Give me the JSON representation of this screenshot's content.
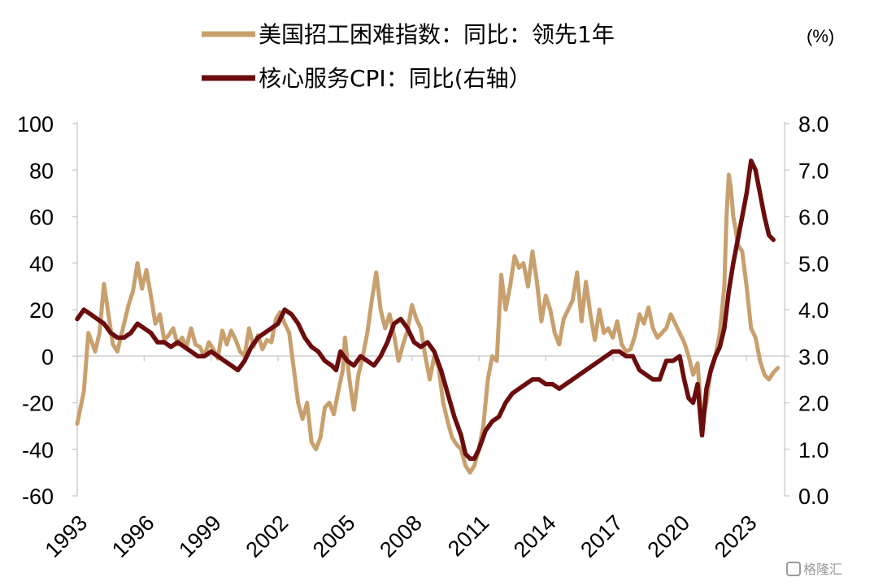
{
  "chart_data": {
    "type": "line",
    "unit_label": "(%)",
    "legend_placement": "top-center",
    "grid": false,
    "x_ticks": [
      "1993",
      "1996",
      "1999",
      "2002",
      "2005",
      "2008",
      "2011",
      "2014",
      "2017",
      "2020",
      "2023"
    ],
    "xlim": [
      1993,
      2024.7
    ],
    "y_left": {
      "lim": [
        -60,
        100
      ],
      "ticks": [
        "100",
        "80",
        "60",
        "40",
        "20",
        "0",
        "-20",
        "-40",
        "-60"
      ]
    },
    "y_right": {
      "lim": [
        0,
        8
      ],
      "ticks": [
        "8.0",
        "7.0",
        "6.0",
        "5.0",
        "4.0",
        "3.0",
        "2.0",
        "1.0",
        "0.0"
      ]
    },
    "series": [
      {
        "name": "美国招工困难指数：同比：领先1年",
        "axis": "left",
        "color": "#c8a06e",
        "points": [
          [
            1993.0,
            -29
          ],
          [
            1993.3,
            -15
          ],
          [
            1993.5,
            10
          ],
          [
            1993.8,
            2
          ],
          [
            1994.0,
            10
          ],
          [
            1994.2,
            31
          ],
          [
            1994.4,
            18
          ],
          [
            1994.6,
            5
          ],
          [
            1994.8,
            2
          ],
          [
            1995.0,
            10
          ],
          [
            1995.3,
            22
          ],
          [
            1995.5,
            28
          ],
          [
            1995.7,
            40
          ],
          [
            1995.9,
            29
          ],
          [
            1996.1,
            37
          ],
          [
            1996.3,
            26
          ],
          [
            1996.5,
            14
          ],
          [
            1996.7,
            18
          ],
          [
            1996.9,
            7
          ],
          [
            1997.1,
            9
          ],
          [
            1997.3,
            12
          ],
          [
            1997.5,
            5
          ],
          [
            1997.7,
            8
          ],
          [
            1997.9,
            4
          ],
          [
            1998.1,
            12
          ],
          [
            1998.3,
            5
          ],
          [
            1998.5,
            4
          ],
          [
            1998.7,
            0
          ],
          [
            1998.9,
            6
          ],
          [
            1999.1,
            3
          ],
          [
            1999.3,
            -1
          ],
          [
            1999.5,
            11
          ],
          [
            1999.7,
            5
          ],
          [
            1999.9,
            11
          ],
          [
            2000.1,
            7
          ],
          [
            2000.3,
            2
          ],
          [
            2000.5,
            0
          ],
          [
            2000.7,
            12
          ],
          [
            2000.9,
            4
          ],
          [
            2001.1,
            9
          ],
          [
            2001.3,
            3
          ],
          [
            2001.5,
            7
          ],
          [
            2001.7,
            6
          ],
          [
            2001.9,
            16
          ],
          [
            2002.1,
            19
          ],
          [
            2002.3,
            14
          ],
          [
            2002.5,
            10
          ],
          [
            2002.7,
            -5
          ],
          [
            2002.9,
            -20
          ],
          [
            2003.1,
            -27
          ],
          [
            2003.3,
            -20
          ],
          [
            2003.5,
            -37
          ],
          [
            2003.7,
            -40
          ],
          [
            2003.9,
            -35
          ],
          [
            2004.1,
            -22
          ],
          [
            2004.3,
            -20
          ],
          [
            2004.5,
            -25
          ],
          [
            2004.7,
            -15
          ],
          [
            2004.9,
            -6
          ],
          [
            2005.0,
            8
          ],
          [
            2005.2,
            -10
          ],
          [
            2005.4,
            -23
          ],
          [
            2005.6,
            -8
          ],
          [
            2005.8,
            0
          ],
          [
            2006.0,
            10
          ],
          [
            2006.2,
            24
          ],
          [
            2006.4,
            36
          ],
          [
            2006.6,
            20
          ],
          [
            2006.8,
            12
          ],
          [
            2007.0,
            18
          ],
          [
            2007.2,
            9
          ],
          [
            2007.4,
            -2
          ],
          [
            2007.6,
            5
          ],
          [
            2007.8,
            11
          ],
          [
            2008.0,
            22
          ],
          [
            2008.2,
            16
          ],
          [
            2008.4,
            12
          ],
          [
            2008.6,
            0
          ],
          [
            2008.8,
            -10
          ],
          [
            2009.0,
            0
          ],
          [
            2009.2,
            -5
          ],
          [
            2009.4,
            -20
          ],
          [
            2009.6,
            -28
          ],
          [
            2009.8,
            -35
          ],
          [
            2010.0,
            -38
          ],
          [
            2010.2,
            -40
          ],
          [
            2010.4,
            -47
          ],
          [
            2010.6,
            -50
          ],
          [
            2010.8,
            -47
          ],
          [
            2011.0,
            -40
          ],
          [
            2011.2,
            -30
          ],
          [
            2011.4,
            -10
          ],
          [
            2011.6,
            0
          ],
          [
            2011.8,
            -2
          ],
          [
            2012.0,
            35
          ],
          [
            2012.2,
            20
          ],
          [
            2012.4,
            30
          ],
          [
            2012.6,
            43
          ],
          [
            2012.8,
            38
          ],
          [
            2013.0,
            40
          ],
          [
            2013.2,
            30
          ],
          [
            2013.4,
            45
          ],
          [
            2013.6,
            32
          ],
          [
            2013.8,
            15
          ],
          [
            2014.0,
            26
          ],
          [
            2014.2,
            20
          ],
          [
            2014.4,
            10
          ],
          [
            2014.6,
            5
          ],
          [
            2014.8,
            16
          ],
          [
            2015.0,
            20
          ],
          [
            2015.2,
            24
          ],
          [
            2015.4,
            36
          ],
          [
            2015.6,
            15
          ],
          [
            2015.8,
            32
          ],
          [
            2016.0,
            18
          ],
          [
            2016.2,
            7
          ],
          [
            2016.4,
            20
          ],
          [
            2016.6,
            10
          ],
          [
            2016.8,
            12
          ],
          [
            2017.0,
            8
          ],
          [
            2017.2,
            15
          ],
          [
            2017.4,
            5
          ],
          [
            2017.6,
            2
          ],
          [
            2017.8,
            3
          ],
          [
            2018.0,
            9
          ],
          [
            2018.2,
            18
          ],
          [
            2018.4,
            14
          ],
          [
            2018.6,
            21
          ],
          [
            2018.8,
            12
          ],
          [
            2019.0,
            8
          ],
          [
            2019.2,
            10
          ],
          [
            2019.4,
            12
          ],
          [
            2019.6,
            18
          ],
          [
            2019.8,
            14
          ],
          [
            2020.0,
            10
          ],
          [
            2020.2,
            6
          ],
          [
            2020.4,
            0
          ],
          [
            2020.6,
            -8
          ],
          [
            2020.8,
            -3
          ],
          [
            2021.0,
            -28
          ],
          [
            2021.2,
            -20
          ],
          [
            2021.4,
            -5
          ],
          [
            2021.6,
            0
          ],
          [
            2021.8,
            10
          ],
          [
            2022.0,
            30
          ],
          [
            2022.1,
            60
          ],
          [
            2022.2,
            78
          ],
          [
            2022.3,
            72
          ],
          [
            2022.4,
            60
          ],
          [
            2022.5,
            55
          ],
          [
            2022.6,
            48
          ],
          [
            2022.8,
            45
          ],
          [
            2023.0,
            30
          ],
          [
            2023.2,
            12
          ],
          [
            2023.4,
            8
          ],
          [
            2023.6,
            -2
          ],
          [
            2023.8,
            -8
          ],
          [
            2024.0,
            -10
          ],
          [
            2024.2,
            -7
          ],
          [
            2024.4,
            -5
          ]
        ]
      },
      {
        "name": "核心服务CPI：同比(右轴）",
        "axis": "right",
        "color": "#6b0d0d",
        "points": [
          [
            1993.0,
            3.8
          ],
          [
            1993.3,
            4.0
          ],
          [
            1993.6,
            3.9
          ],
          [
            1993.9,
            3.8
          ],
          [
            1994.2,
            3.7
          ],
          [
            1994.5,
            3.5
          ],
          [
            1994.8,
            3.4
          ],
          [
            1995.1,
            3.4
          ],
          [
            1995.4,
            3.5
          ],
          [
            1995.7,
            3.7
          ],
          [
            1996.0,
            3.6
          ],
          [
            1996.3,
            3.5
          ],
          [
            1996.6,
            3.3
          ],
          [
            1996.9,
            3.3
          ],
          [
            1997.2,
            3.2
          ],
          [
            1997.5,
            3.3
          ],
          [
            1997.8,
            3.2
          ],
          [
            1998.1,
            3.1
          ],
          [
            1998.4,
            3.0
          ],
          [
            1998.7,
            3.0
          ],
          [
            1999.0,
            3.1
          ],
          [
            1999.3,
            3.0
          ],
          [
            1999.6,
            2.9
          ],
          [
            1999.9,
            2.8
          ],
          [
            2000.2,
            2.7
          ],
          [
            2000.5,
            2.9
          ],
          [
            2000.8,
            3.2
          ],
          [
            2001.1,
            3.4
          ],
          [
            2001.4,
            3.5
          ],
          [
            2001.7,
            3.6
          ],
          [
            2002.0,
            3.7
          ],
          [
            2002.3,
            4.0
          ],
          [
            2002.6,
            3.9
          ],
          [
            2002.9,
            3.7
          ],
          [
            2003.2,
            3.4
          ],
          [
            2003.5,
            3.2
          ],
          [
            2003.8,
            3.1
          ],
          [
            2004.1,
            2.9
          ],
          [
            2004.4,
            2.8
          ],
          [
            2004.6,
            2.7
          ],
          [
            2004.8,
            3.1
          ],
          [
            2005.1,
            2.9
          ],
          [
            2005.4,
            2.8
          ],
          [
            2005.7,
            3.0
          ],
          [
            2006.0,
            2.9
          ],
          [
            2006.3,
            2.8
          ],
          [
            2006.6,
            3.0
          ],
          [
            2006.9,
            3.3
          ],
          [
            2007.2,
            3.7
          ],
          [
            2007.5,
            3.8
          ],
          [
            2007.8,
            3.6
          ],
          [
            2008.1,
            3.3
          ],
          [
            2008.4,
            3.2
          ],
          [
            2008.7,
            3.3
          ],
          [
            2009.0,
            3.1
          ],
          [
            2009.3,
            2.7
          ],
          [
            2009.6,
            2.2
          ],
          [
            2009.9,
            1.7
          ],
          [
            2010.2,
            1.3
          ],
          [
            2010.4,
            0.9
          ],
          [
            2010.6,
            0.8
          ],
          [
            2010.8,
            0.8
          ],
          [
            2011.0,
            1.0
          ],
          [
            2011.3,
            1.4
          ],
          [
            2011.6,
            1.6
          ],
          [
            2011.9,
            1.7
          ],
          [
            2012.2,
            2.0
          ],
          [
            2012.5,
            2.2
          ],
          [
            2012.8,
            2.3
          ],
          [
            2013.1,
            2.4
          ],
          [
            2013.4,
            2.5
          ],
          [
            2013.7,
            2.5
          ],
          [
            2014.0,
            2.4
          ],
          [
            2014.3,
            2.4
          ],
          [
            2014.6,
            2.3
          ],
          [
            2014.9,
            2.4
          ],
          [
            2015.2,
            2.5
          ],
          [
            2015.5,
            2.6
          ],
          [
            2015.8,
            2.7
          ],
          [
            2016.1,
            2.8
          ],
          [
            2016.4,
            2.9
          ],
          [
            2016.7,
            3.0
          ],
          [
            2017.0,
            3.1
          ],
          [
            2017.3,
            3.1
          ],
          [
            2017.6,
            3.0
          ],
          [
            2017.9,
            3.0
          ],
          [
            2018.2,
            2.7
          ],
          [
            2018.5,
            2.6
          ],
          [
            2018.8,
            2.5
          ],
          [
            2019.1,
            2.5
          ],
          [
            2019.4,
            2.9
          ],
          [
            2019.7,
            2.9
          ],
          [
            2020.0,
            3.0
          ],
          [
            2020.2,
            2.5
          ],
          [
            2020.4,
            2.1
          ],
          [
            2020.6,
            2.0
          ],
          [
            2020.8,
            2.4
          ],
          [
            2021.0,
            1.3
          ],
          [
            2021.2,
            2.3
          ],
          [
            2021.4,
            2.7
          ],
          [
            2021.6,
            3.0
          ],
          [
            2021.8,
            3.2
          ],
          [
            2022.0,
            3.6
          ],
          [
            2022.2,
            4.4
          ],
          [
            2022.4,
            5.0
          ],
          [
            2022.6,
            5.5
          ],
          [
            2022.8,
            6.0
          ],
          [
            2023.0,
            6.5
          ],
          [
            2023.2,
            7.2
          ],
          [
            2023.4,
            7.0
          ],
          [
            2023.6,
            6.5
          ],
          [
            2023.8,
            6.0
          ],
          [
            2024.0,
            5.6
          ],
          [
            2024.2,
            5.5
          ]
        ]
      }
    ]
  },
  "watermark": {
    "text": "格隆汇"
  }
}
